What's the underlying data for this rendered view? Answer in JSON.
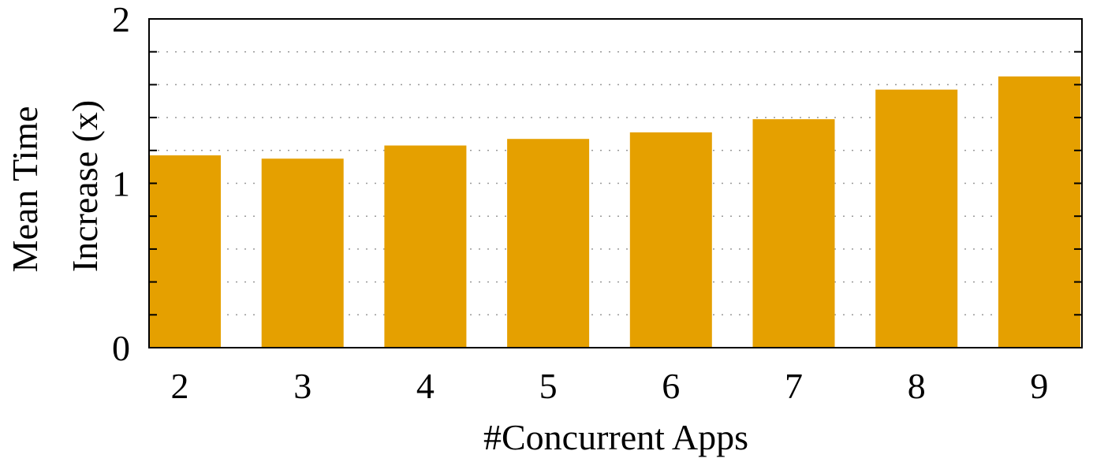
{
  "chart_data": {
    "type": "bar",
    "title": "",
    "xlabel": "#Concurrent Apps",
    "ylabel_lines": [
      "Mean Time",
      "Increase (x)"
    ],
    "categories": [
      "2",
      "3",
      "4",
      "5",
      "6",
      "7",
      "8",
      "9"
    ],
    "values": [
      1.17,
      1.15,
      1.23,
      1.27,
      1.31,
      1.39,
      1.57,
      1.65
    ],
    "ylim": [
      0,
      2
    ],
    "yticks": [
      "0",
      "1",
      "2"
    ],
    "grid": "horizontal-dotted",
    "legend": "none",
    "colors": {
      "bar": "#e5a000",
      "grid": "#999999",
      "axis": "#000000"
    }
  }
}
